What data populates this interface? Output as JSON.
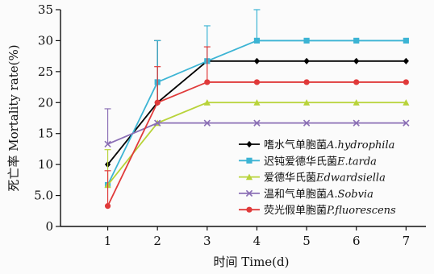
{
  "chart_data": {
    "type": "line",
    "title": "",
    "xlabel": "时间 Time(d)",
    "ylabel": "死亡率 Mortality rate(%)",
    "x": [
      1,
      2,
      3,
      4,
      5,
      6,
      7
    ],
    "xlim": [
      0.05,
      7.4
    ],
    "ylim": [
      0,
      35
    ],
    "yticks": [
      "0",
      "5.0",
      "10",
      "15",
      "20",
      "25",
      "30",
      "35"
    ],
    "ytick_values": [
      0,
      5,
      10,
      15,
      20,
      25,
      30,
      35
    ],
    "legend_position": "right",
    "series": [
      {
        "name": "嗜水气单胞菌",
        "latin": "A.hydrophila",
        "color": "#000000",
        "marker": "diamond",
        "values": [
          10,
          20,
          26.7,
          26.7,
          26.7,
          26.7,
          26.7
        ],
        "error_upper": [
          null,
          30,
          null,
          null,
          null,
          null,
          null
        ]
      },
      {
        "name": "迟钝爱德华氏菌",
        "latin": "E.tarda",
        "color": "#3cb4d4",
        "marker": "square",
        "values": [
          6.7,
          23.3,
          26.7,
          30,
          30,
          30,
          30
        ],
        "error_upper": [
          null,
          30,
          32.4,
          35,
          null,
          null,
          null
        ]
      },
      {
        "name": "爱德华氏菌",
        "latin": "Edwardsiella",
        "color": "#b8d33a",
        "marker": "triangle",
        "values": [
          6.7,
          16.7,
          20,
          20,
          20,
          20,
          20
        ],
        "error_upper": [
          12.4,
          null,
          null,
          null,
          null,
          null,
          null
        ]
      },
      {
        "name": "温和气单胞菌",
        "latin": "A.Sobvia",
        "color": "#8b6fb5",
        "marker": "x",
        "values": [
          13.3,
          16.7,
          16.7,
          16.7,
          16.7,
          16.7,
          16.7
        ],
        "error_upper": [
          19,
          null,
          null,
          null,
          null,
          null,
          null
        ]
      },
      {
        "name": "荧光假单胞菌",
        "latin": "P.fluorescens",
        "color": "#e03a3a",
        "marker": "circle",
        "values": [
          3.3,
          20,
          23.3,
          23.3,
          23.3,
          23.3,
          23.3
        ],
        "error_upper": [
          9,
          25.8,
          29,
          null,
          null,
          null,
          null
        ]
      }
    ]
  }
}
